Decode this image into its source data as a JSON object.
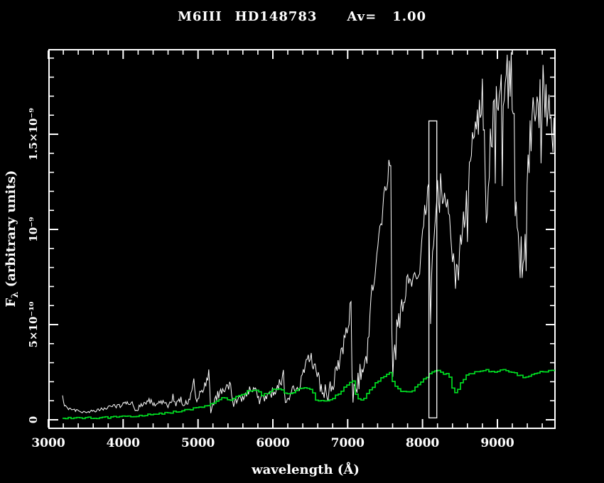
{
  "title": {
    "spectral_type": "M6III",
    "star_id": "HD148783",
    "av_label": "Av=",
    "av_value": "1.00"
  },
  "axis_labels": {
    "x": "wavelength (Å)",
    "y_prefix": "F",
    "y_subscript": "λ",
    "y_rest": " (arbitrary units)"
  },
  "colors": {
    "background": "#000000",
    "frame": "#ffffff",
    "white_spectrum": "#ffffff",
    "green_spectrum": "#00dd22"
  },
  "chart_data": {
    "type": "line",
    "title": "M6III HD148783 Av= 1.00",
    "xlabel": "wavelength (Å)",
    "ylabel": "Fλ (arbitrary units)",
    "xlim": [
      3000,
      9779
    ],
    "ylim": [
      0,
      1.95e-09
    ],
    "grid": false,
    "legend": "none",
    "flux_unit_scale": 1e-10,
    "x_major_ticks": [
      {
        "value": 3000,
        "label": "3000"
      },
      {
        "value": 4000,
        "label": "4000"
      },
      {
        "value": 5000,
        "label": "5000"
      },
      {
        "value": 6000,
        "label": "6000"
      },
      {
        "value": 7000,
        "label": "7000"
      },
      {
        "value": 8000,
        "label": "8000"
      },
      {
        "value": 9000,
        "label": "9000"
      }
    ],
    "x_minor_step": 200,
    "y_major_ticks": [
      {
        "value": 0,
        "label": "0"
      },
      {
        "value": 5,
        "label": "5×10⁻¹⁰"
      },
      {
        "value": 10,
        "label": "10⁻⁹"
      },
      {
        "value": 15,
        "label": "1.5×10⁻⁹"
      }
    ],
    "y_minor_step": 1,
    "marker_box": {
      "x_range": [
        8085,
        8190
      ],
      "flux_range": [
        0.1,
        15.7
      ]
    },
    "series": [
      {
        "name": "white-spectrum",
        "color": "#ffffff",
        "style": "jagged",
        "anchors": [
          [
            3190,
            1.25
          ],
          [
            3210,
            0.8
          ],
          [
            3260,
            0.6
          ],
          [
            3350,
            0.5
          ],
          [
            3450,
            0.42
          ],
          [
            3550,
            0.45
          ],
          [
            3650,
            0.5
          ],
          [
            3750,
            0.6
          ],
          [
            3820,
            0.7
          ],
          [
            3900,
            0.72
          ],
          [
            3960,
            0.75
          ],
          [
            4050,
            0.85
          ],
          [
            4130,
            0.9
          ],
          [
            4160,
            0.45
          ],
          [
            4230,
            0.7
          ],
          [
            4300,
            0.85
          ],
          [
            4350,
            1.0
          ],
          [
            4420,
            0.85
          ],
          [
            4500,
            0.95
          ],
          [
            4600,
            0.8
          ],
          [
            4670,
            1.25
          ],
          [
            4700,
            0.8
          ],
          [
            4780,
            1.1
          ],
          [
            4820,
            0.75
          ],
          [
            4900,
            1.1
          ],
          [
            4945,
            2.2
          ],
          [
            4965,
            0.9
          ],
          [
            5050,
            1.5
          ],
          [
            5100,
            1.9
          ],
          [
            5148,
            2.5
          ],
          [
            5168,
            0.55
          ],
          [
            5220,
            0.9
          ],
          [
            5280,
            1.4
          ],
          [
            5340,
            1.55
          ],
          [
            5400,
            1.7
          ],
          [
            5435,
            1.9
          ],
          [
            5465,
            0.8
          ],
          [
            5520,
            1.1
          ],
          [
            5600,
            1.2
          ],
          [
            5680,
            1.5
          ],
          [
            5740,
            1.7
          ],
          [
            5775,
            1.9
          ],
          [
            5805,
            0.95
          ],
          [
            5860,
            1.1
          ],
          [
            5950,
            1.3
          ],
          [
            6030,
            1.5
          ],
          [
            6100,
            1.9
          ],
          [
            6143,
            2.3
          ],
          [
            6175,
            0.8
          ],
          [
            6250,
            1.3
          ],
          [
            6350,
            1.9
          ],
          [
            6430,
            2.6
          ],
          [
            6470,
            3.2
          ],
          [
            6510,
            3.4
          ],
          [
            6560,
            2.6
          ],
          [
            6610,
            2.1
          ],
          [
            6680,
            1.5
          ],
          [
            6740,
            1.35
          ],
          [
            6800,
            1.9
          ],
          [
            6880,
            2.9
          ],
          [
            6960,
            4.3
          ],
          [
            7020,
            5.5
          ],
          [
            7048,
            6.1
          ],
          [
            7062,
            1.5
          ],
          [
            7100,
            1.25
          ],
          [
            7160,
            2.3
          ],
          [
            7210,
            3.0
          ],
          [
            7255,
            3.2
          ],
          [
            7310,
            6.0
          ],
          [
            7400,
            9.0
          ],
          [
            7480,
            11.5
          ],
          [
            7535,
            12.9
          ],
          [
            7562,
            13.6
          ],
          [
            7580,
            12.8
          ],
          [
            7592,
            2.5
          ],
          [
            7620,
            4.0
          ],
          [
            7660,
            4.6
          ],
          [
            7700,
            5.6
          ],
          [
            7800,
            7.1
          ],
          [
            7900,
            7.7
          ],
          [
            7965,
            8.2
          ],
          [
            8000,
            9.7
          ],
          [
            8050,
            11.6
          ],
          [
            8088,
            12.8
          ],
          [
            8103,
            4.2
          ],
          [
            8130,
            9.0
          ],
          [
            8160,
            11.0
          ],
          [
            8210,
            12.3
          ],
          [
            8260,
            11.5
          ],
          [
            8300,
            12.2
          ],
          [
            8340,
            11.0
          ],
          [
            8390,
            9.3
          ],
          [
            8440,
            7.9
          ],
          [
            8490,
            8.3
          ],
          [
            8540,
            9.8
          ],
          [
            8600,
            11.8
          ],
          [
            8660,
            13.8
          ],
          [
            8720,
            15.6
          ],
          [
            8790,
            17.4
          ],
          [
            8825,
            14.5
          ],
          [
            8860,
            10.3
          ],
          [
            8890,
            13.0
          ],
          [
            8930,
            15.5
          ],
          [
            8980,
            16.5
          ],
          [
            9050,
            17.3
          ],
          [
            9120,
            17.8
          ],
          [
            9175,
            18.5
          ],
          [
            9215,
            16.0
          ],
          [
            9255,
            12.5
          ],
          [
            9300,
            8.2
          ],
          [
            9330,
            8.8
          ],
          [
            9370,
            10.5
          ],
          [
            9420,
            13.8
          ],
          [
            9470,
            15.5
          ],
          [
            9530,
            16.8
          ],
          [
            9585,
            18.3
          ],
          [
            9620,
            18.6
          ],
          [
            9660,
            15.5
          ],
          [
            9700,
            17.0
          ],
          [
            9740,
            14.0
          ],
          [
            9775,
            15.5
          ],
          [
            9779,
            15.0
          ]
        ],
        "noise_anchors": [
          [
            3190,
            0.06
          ],
          [
            3600,
            0.08
          ],
          [
            4000,
            0.12
          ],
          [
            4500,
            0.15
          ],
          [
            5000,
            0.25
          ],
          [
            5500,
            0.25
          ],
          [
            6000,
            0.3
          ],
          [
            6500,
            0.45
          ],
          [
            7000,
            0.5
          ],
          [
            7300,
            0.7
          ],
          [
            7560,
            0.5
          ],
          [
            7650,
            1.3
          ],
          [
            7800,
            0.6
          ],
          [
            8000,
            0.5
          ],
          [
            8200,
            1.3
          ],
          [
            8400,
            1.0
          ],
          [
            8600,
            1.2
          ],
          [
            8900,
            1.5
          ],
          [
            9200,
            1.6
          ],
          [
            9500,
            1.7
          ],
          [
            9779,
            1.5
          ]
        ]
      },
      {
        "name": "green-spectrum",
        "color": "#00dd22",
        "style": "steps",
        "step_noise": 0.05,
        "anchors": [
          [
            3190,
            0.08
          ],
          [
            3500,
            0.1
          ],
          [
            3900,
            0.13
          ],
          [
            4100,
            0.18
          ],
          [
            4300,
            0.25
          ],
          [
            4500,
            0.33
          ],
          [
            4700,
            0.42
          ],
          [
            4900,
            0.55
          ],
          [
            5000,
            0.65
          ],
          [
            5100,
            0.72
          ],
          [
            5170,
            0.85
          ],
          [
            5250,
            1.0
          ],
          [
            5330,
            1.15
          ],
          [
            5390,
            1.1
          ],
          [
            5450,
            1.05
          ],
          [
            5520,
            1.25
          ],
          [
            5600,
            1.35
          ],
          [
            5660,
            1.5
          ],
          [
            5720,
            1.55
          ],
          [
            5790,
            1.5
          ],
          [
            5855,
            1.27
          ],
          [
            5920,
            1.4
          ],
          [
            5990,
            1.55
          ],
          [
            6060,
            1.62
          ],
          [
            6120,
            1.55
          ],
          [
            6170,
            1.35
          ],
          [
            6230,
            1.35
          ],
          [
            6290,
            1.5
          ],
          [
            6360,
            1.62
          ],
          [
            6440,
            1.65
          ],
          [
            6520,
            1.58
          ],
          [
            6555,
            1.08
          ],
          [
            6650,
            1.0
          ],
          [
            6750,
            1.05
          ],
          [
            6820,
            1.2
          ],
          [
            6880,
            1.4
          ],
          [
            6940,
            1.65
          ],
          [
            7000,
            1.9
          ],
          [
            7045,
            2.05
          ],
          [
            7080,
            1.95
          ],
          [
            7110,
            1.15
          ],
          [
            7180,
            1.05
          ],
          [
            7240,
            1.25
          ],
          [
            7300,
            1.6
          ],
          [
            7370,
            1.95
          ],
          [
            7440,
            2.2
          ],
          [
            7510,
            2.35
          ],
          [
            7560,
            2.45
          ],
          [
            7610,
            1.9
          ],
          [
            7660,
            1.65
          ],
          [
            7720,
            1.5
          ],
          [
            7800,
            1.45
          ],
          [
            7860,
            1.55
          ],
          [
            7920,
            1.75
          ],
          [
            7990,
            2.05
          ],
          [
            8060,
            2.3
          ],
          [
            8130,
            2.5
          ],
          [
            8200,
            2.55
          ],
          [
            8260,
            2.45
          ],
          [
            8320,
            2.4
          ],
          [
            8370,
            2.2
          ],
          [
            8400,
            1.5
          ],
          [
            8440,
            1.45
          ],
          [
            8480,
            1.7
          ],
          [
            8530,
            2.1
          ],
          [
            8580,
            2.3
          ],
          [
            8650,
            2.45
          ],
          [
            8720,
            2.5
          ],
          [
            8790,
            2.55
          ],
          [
            8860,
            2.6
          ],
          [
            8930,
            2.5
          ],
          [
            9000,
            2.55
          ],
          [
            9070,
            2.6
          ],
          [
            9140,
            2.5
          ],
          [
            9210,
            2.45
          ],
          [
            9280,
            2.35
          ],
          [
            9340,
            2.2
          ],
          [
            9400,
            2.25
          ],
          [
            9470,
            2.4
          ],
          [
            9540,
            2.5
          ],
          [
            9610,
            2.5
          ],
          [
            9680,
            2.55
          ],
          [
            9750,
            2.55
          ],
          [
            9779,
            2.6
          ]
        ]
      }
    ]
  }
}
